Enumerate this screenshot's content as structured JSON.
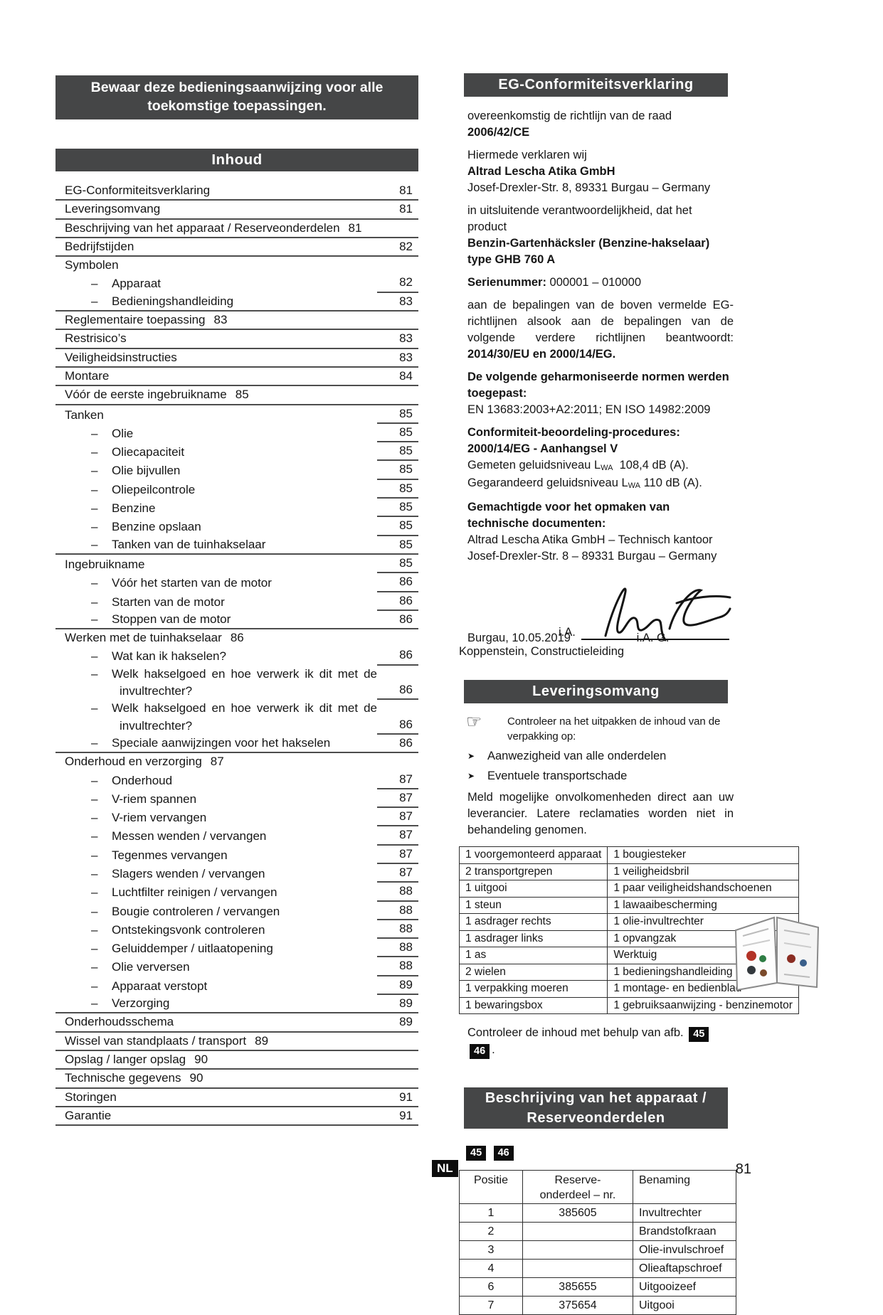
{
  "footer": {
    "language_badge": "NL",
    "page_number": "81"
  },
  "left": {
    "notice": "Bewaar deze bedieningsaanwijzing voor alle toekomstige toepassingen.",
    "toc_title": "Inhoud",
    "toc": [
      {
        "l": "EG-Conformiteitsverklaring",
        "p": "81",
        "nr": true,
        "fr": true
      },
      {
        "l": "Leveringsomvang",
        "p": "81",
        "nr": true,
        "fr": true
      },
      {
        "l": "Beschrijving van het apparaat / Reserveonderdelen",
        "ip": "81",
        "fr": true
      },
      {
        "l": "Bedrijfstijden",
        "p": "82",
        "nr": true,
        "fr": true
      },
      {
        "l": "Symbolen"
      },
      {
        "l": "Apparaat",
        "sub": true,
        "p": "82",
        "nr": true
      },
      {
        "l": "Bedieningshandleiding",
        "sub": true,
        "p": "83",
        "nr": true,
        "fr": true
      },
      {
        "l": "Reglementaire toepassing",
        "ip": "83",
        "fr": true
      },
      {
        "l": "Restrisico’s",
        "p": "83",
        "nr": true,
        "fr": true
      },
      {
        "l": "Veiligheidsinstructies",
        "p": "83",
        "nr": true,
        "fr": true
      },
      {
        "l": "Montare",
        "p": "84",
        "nr": true,
        "fr": true
      },
      {
        "l": "Vóór de eerste ingebruikname",
        "ip": "85",
        "fr": true
      },
      {
        "l": "Tanken",
        "p": "85",
        "nr": true
      },
      {
        "l": "Olie",
        "sub": true,
        "p": "85",
        "nr": true
      },
      {
        "l": "Oliecapaciteit",
        "sub": true,
        "p": "85",
        "nr": true
      },
      {
        "l": "Olie bijvullen",
        "sub": true,
        "p": "85",
        "nr": true
      },
      {
        "l": "Oliepeilcontrole",
        "sub": true,
        "p": "85",
        "nr": true
      },
      {
        "l": "Benzine",
        "sub": true,
        "p": "85",
        "nr": true
      },
      {
        "l": "Benzine opslaan",
        "sub": true,
        "p": "85",
        "nr": true
      },
      {
        "l": "Tanken van de tuinhakselaar",
        "sub": true,
        "p": "85",
        "nr": true,
        "fr": true
      },
      {
        "l": "Ingebruikname",
        "p": "85",
        "nr": true
      },
      {
        "l": "Vóór het starten van de motor",
        "sub": true,
        "p": "86",
        "nr": true
      },
      {
        "l": "Starten van de motor",
        "sub": true,
        "p": "86",
        "nr": true
      },
      {
        "l": "Stoppen van de motor",
        "sub": true,
        "p": "86",
        "nr": true,
        "fr": true
      },
      {
        "l": "Werken met de tuinhakselaar",
        "ip": "86"
      },
      {
        "l": "Wat kan ik hakselen?",
        "sub": true,
        "p": "86",
        "nr": true
      },
      {
        "l": "Welk hakselgoed en hoe verwerk ik dit met de invultrechter?",
        "sub": true,
        "p": "86",
        "nr": true,
        "wrap": true
      },
      {
        "l": "Welk hakselgoed en hoe verwerk ik dit met de invultrechter?",
        "sub": true,
        "p": "86",
        "nr": true,
        "wrap": true
      },
      {
        "l": "Speciale aanwijzingen voor het hakselen",
        "sub": true,
        "p": "86",
        "nr": true,
        "fr": true
      },
      {
        "l": "Onderhoud en verzorging",
        "ip": "87"
      },
      {
        "l": "Onderhoud",
        "sub": true,
        "p": "87",
        "nr": true
      },
      {
        "l": "V-riem spannen",
        "sub": true,
        "p": "87",
        "nr": true
      },
      {
        "l": "V-riem vervangen",
        "sub": true,
        "p": "87",
        "nr": true
      },
      {
        "l": "Messen wenden / vervangen",
        "sub": true,
        "p": "87",
        "nr": true
      },
      {
        "l": "Tegenmes vervangen",
        "sub": true,
        "p": "87",
        "nr": true
      },
      {
        "l": "Slagers wenden / vervangen",
        "sub": true,
        "p": "87",
        "nr": true
      },
      {
        "l": "Luchtfilter reinigen / vervangen",
        "sub": true,
        "p": "88",
        "nr": true
      },
      {
        "l": "Bougie controleren / vervangen",
        "sub": true,
        "p": "88",
        "nr": true
      },
      {
        "l": "Ontstekingsvonk controleren",
        "sub": true,
        "p": "88",
        "nr": true
      },
      {
        "l": "Geluiddemper / uitlaatopening",
        "sub": true,
        "p": "88",
        "nr": true
      },
      {
        "l": "Olie verversen",
        "sub": true,
        "p": "88",
        "nr": true
      },
      {
        "l": "Apparaat verstopt",
        "sub": true,
        "p": "89",
        "nr": true
      },
      {
        "l": "Verzorging",
        "sub": true,
        "p": "89",
        "nr": true,
        "fr": true
      },
      {
        "l": "Onderhoudsschema",
        "p": "89",
        "nr": true,
        "fr": true
      },
      {
        "l": "Wissel van standplaats / transport",
        "ip": "89",
        "fr": true
      },
      {
        "l": "Opslag / langer opslag",
        "ip": "90",
        "fr": true
      },
      {
        "l": "Technische gegevens",
        "ip": "90",
        "fr": true
      },
      {
        "l": "Storingen",
        "p": "91",
        "nr": true,
        "fr": true
      },
      {
        "l": "Garantie",
        "p": "91",
        "nr": true,
        "fr": true
      }
    ]
  },
  "right": {
    "eg": {
      "title": "EG-Conformiteitsverklaring",
      "lines": [
        {
          "mt": 16,
          "runs": [
            {
              "t": "overeenkomstig de richtlijn van de raad"
            }
          ]
        },
        {
          "runs": [
            {
              "t": "2006/42/CE",
              "b": true
            }
          ]
        },
        {
          "mt": 9,
          "runs": [
            {
              "t": "Hiermede verklaren wij"
            }
          ]
        },
        {
          "runs": [
            {
              "t": "Altrad Lescha Atika GmbH",
              "b": true
            }
          ]
        },
        {
          "runs": [
            {
              "t": "Josef-Drexler-Str. 8, 89331 Burgau – Germany"
            }
          ]
        },
        {
          "mt": 9,
          "runs": [
            {
              "t": "in uitsluitende verantwoordelijkheid, dat het product"
            }
          ]
        },
        {
          "runs": [
            {
              "t": "Benzin-Gartenhäcksler (Benzine-hakselaar) type GHB 760 A",
              "b": true
            }
          ]
        },
        {
          "mt": 9,
          "runs": [
            {
              "t": "Serienummer:",
              "b": true
            },
            {
              "t": " 000001 – 010000"
            }
          ]
        },
        {
          "mt": 9,
          "j": true,
          "runs": [
            {
              "t": "aan de bepalingen van de boven vermelde EG-richtlijnen alsook aan de bepalingen van de volgende verdere richtlijnen beantwoordt: "
            },
            {
              "t": "2014/30/EU en 2000/14/EG.",
              "b": true
            }
          ]
        },
        {
          "mt": 9,
          "runs": [
            {
              "t": "De volgende geharmoniseerde normen werden toegepast:",
              "b": true
            }
          ]
        },
        {
          "runs": [
            {
              "t": "EN 13683:2003+A2:2011; EN ISO 14982:2009"
            }
          ]
        },
        {
          "mt": 9,
          "runs": [
            {
              "t": "Conformiteit-beoordeling-procedures:",
              "b": true
            }
          ]
        },
        {
          "runs": [
            {
              "t": "2000/14/EG - Aanhangsel V",
              "b": true
            }
          ]
        },
        {
          "runs": [
            {
              "t": "Gemeten geluidsniveau L"
            },
            {
              "t": "WA",
              "s": true
            },
            {
              "t": "  108,4 dB (A)."
            }
          ]
        },
        {
          "runs": [
            {
              "t": "Gegarandeerd geluidsniveau L"
            },
            {
              "t": "WA",
              "s": true
            },
            {
              "t": " 110 dB (A)."
            }
          ]
        },
        {
          "mt": 9,
          "runs": [
            {
              "t": "Gemachtigde voor het opmaken van technische documenten:",
              "b": true
            }
          ]
        },
        {
          "runs": [
            {
              "t": "Altrad Lescha Atika GmbH – Technisch kantoor"
            }
          ]
        },
        {
          "runs": [
            {
              "t": "Josef-Drexler-Str. 8 – 89331 Burgau – Germany"
            }
          ]
        }
      ],
      "signature": {
        "ia": "i.A.",
        "date": "Burgau, 10.05.2019",
        "name": "i.A. G. Koppenstein, Constructieleiding"
      }
    },
    "leveringsomvang": {
      "title": "Leveringsomvang",
      "pointer": "Controleer na het uitpakken de inhoud van de verpakking op:",
      "bullets": [
        "Aanwezigheid van alle onderdelen",
        "Eventuele transportschade"
      ],
      "note": "Meld mogelijke onvolkomenheden direct aan uw leverancier. Latere reclamaties worden niet in behandeling genomen.",
      "rows": [
        [
          "1 voorgemonteerd apparaat",
          "1 bougiesteker"
        ],
        [
          "2 transportgrepen",
          "1 veiligheidsbril"
        ],
        [
          "1 uitgooi",
          "1 paar veiligheidshandschoenen"
        ],
        [
          "1 steun",
          "1 lawaaibescherming"
        ],
        [
          "1 asdrager rechts",
          "1 olie-invultrechter"
        ],
        [
          "1 asdrager links",
          "1 opvangzak"
        ],
        [
          "1 as",
          "Werktuig"
        ],
        [
          "2 wielen",
          "1 bedieningshandleiding"
        ],
        [
          "1 verpakking moeren",
          "1 montage- en bedienblad"
        ],
        [
          "1 bewaringsbox",
          "1 gebruiksaanwijzing - benzinemotor"
        ]
      ],
      "check_prefix": "Controleer de inhoud met behulp van afb.",
      "check_badges": [
        "45",
        "46"
      ],
      "check_suffix": "."
    },
    "beschrijving": {
      "title_line1": "Beschrijving van het apparaat /",
      "title_line2": "Reserveonderdelen",
      "badges": [
        "45",
        "46"
      ],
      "table": {
        "header_col1": "Positie",
        "header_col2a": "Reserve-",
        "header_col2b": "onderdeel – nr.",
        "header_col3": "Benaming",
        "rows": [
          [
            "1",
            "385605",
            "Invultrechter"
          ],
          [
            "2",
            "",
            "Brandstofkraan"
          ],
          [
            "3",
            "",
            "Olie-invulschroef"
          ],
          [
            "4",
            "",
            "Olieaftapschroef"
          ],
          [
            "6",
            "385655",
            "Uitgooizeef"
          ],
          [
            "7",
            "375654",
            "Uitgooi"
          ]
        ]
      }
    }
  }
}
